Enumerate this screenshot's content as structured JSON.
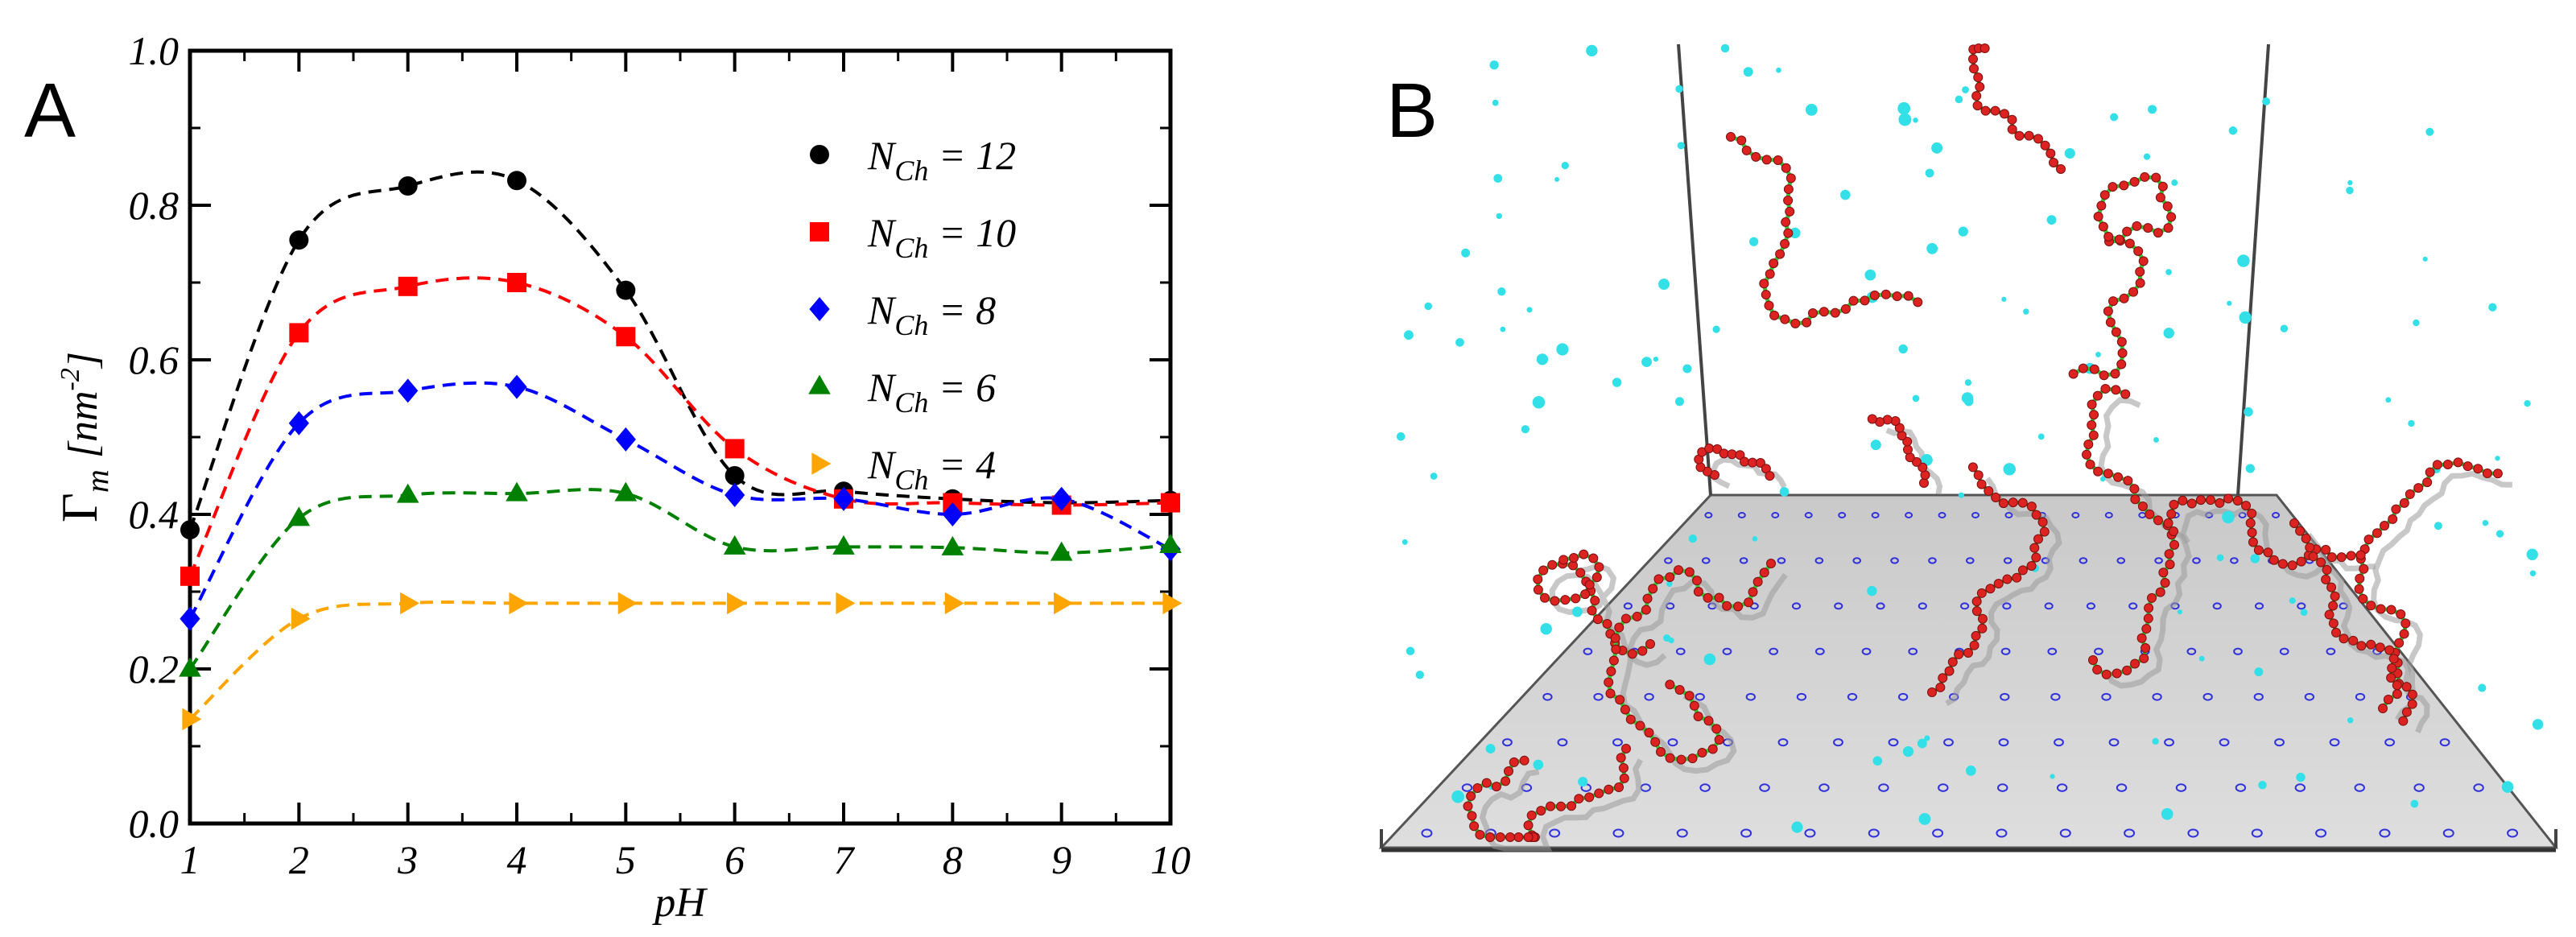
{
  "panels": {
    "a_label": "A",
    "b_label": "B"
  },
  "chart_data": {
    "type": "line",
    "title": "",
    "xlabel": "pH",
    "ylabel": {
      "symbol": "Γ",
      "subscript": "m",
      "unit_open": "[nm",
      "unit_exp": "-2",
      "unit_close": "]"
    },
    "xlim": [
      1,
      10
    ],
    "ylim": [
      0.0,
      1.0
    ],
    "xticks": [
      1,
      2,
      3,
      4,
      5,
      6,
      7,
      8,
      9,
      10
    ],
    "yticks": [
      0.0,
      0.2,
      0.4,
      0.6,
      0.8,
      1.0
    ],
    "ytick_labels": [
      "0.0",
      "0.2",
      "0.4",
      "0.6",
      "0.8",
      "1.0"
    ],
    "legend_position": "top-right",
    "x": [
      1,
      2,
      3,
      4,
      5,
      6,
      7,
      8,
      9,
      10
    ],
    "series": [
      {
        "name": "N_Ch = 12",
        "legend_main": "N",
        "legend_sub": "Ch",
        "legend_value": " = 12",
        "color": "#000000",
        "marker": "circle",
        "values": [
          0.38,
          0.755,
          0.825,
          0.832,
          0.69,
          0.45,
          0.43,
          0.42,
          0.415,
          0.418
        ]
      },
      {
        "name": "N_Ch = 10",
        "legend_main": "N",
        "legend_sub": "Ch",
        "legend_value": " = 10",
        "color": "#ff0000",
        "marker": "square",
        "values": [
          0.32,
          0.635,
          0.695,
          0.7,
          0.63,
          0.485,
          0.42,
          0.415,
          0.412,
          0.415
        ]
      },
      {
        "name": "N_Ch = 8",
        "legend_main": "N",
        "legend_sub": "Ch",
        "legend_value": " = 8",
        "color": "#0000ff",
        "marker": "diamond",
        "values": [
          0.265,
          0.518,
          0.56,
          0.565,
          0.497,
          0.425,
          0.42,
          0.4,
          0.42,
          0.355
        ]
      },
      {
        "name": "N_Ch = 6",
        "legend_main": "N",
        "legend_sub": "Ch",
        "legend_value": " = 6",
        "color": "#008000",
        "marker": "triangle-up",
        "values": [
          0.2,
          0.395,
          0.425,
          0.427,
          0.427,
          0.358,
          0.358,
          0.357,
          0.35,
          0.36
        ]
      },
      {
        "name": "N_Ch = 4",
        "legend_main": "N",
        "legend_sub": "Ch",
        "legend_value": " = 4",
        "color": "#ffa500",
        "marker": "triangle-right",
        "values": [
          0.135,
          0.265,
          0.285,
          0.285,
          0.285,
          0.285,
          0.285,
          0.285,
          0.285,
          0.285
        ]
      }
    ]
  },
  "colors": {
    "chain_bead_red": "#dd2222",
    "chain_bond_green": "#33cc33",
    "ion_cyan": "#33e0e8",
    "surface_site_blue": "#3030dd",
    "surface_gray": "#cfcfcf"
  }
}
